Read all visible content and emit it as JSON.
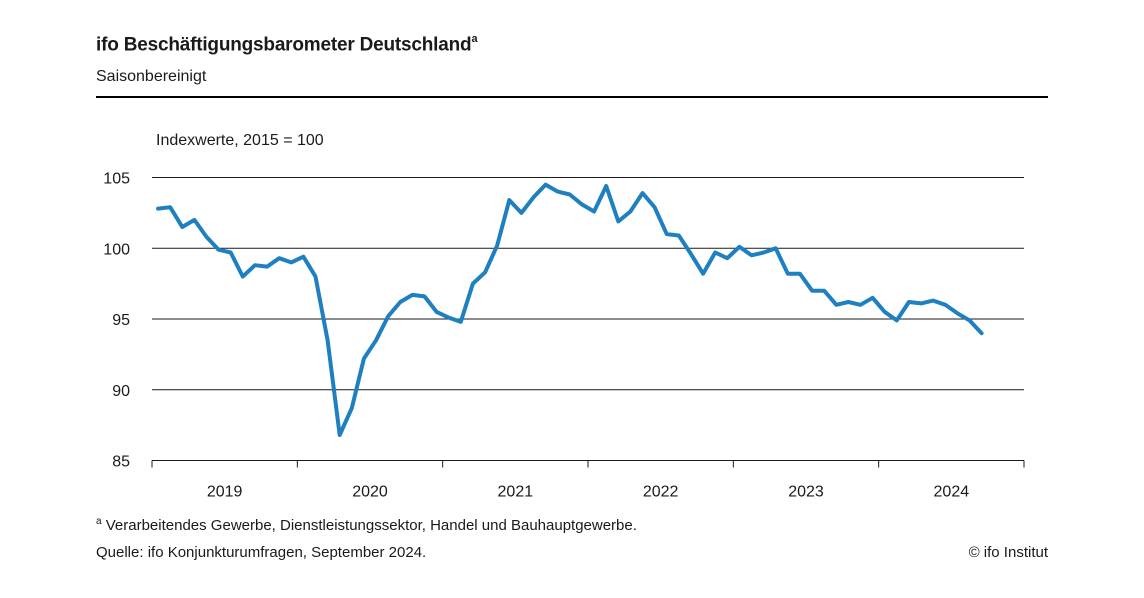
{
  "header": {
    "title": "ifo Beschäftigungsbarometer Deutschland",
    "title_marker": "a",
    "subtitle": "Saisonbereinigt"
  },
  "footer": {
    "footnote_marker": "a",
    "footnote": "Verarbeitendes Gewerbe, Dienstleistungssektor, Handel und Bauhauptgewerbe.",
    "source": "Quelle: ifo Konjunkturumfragen, September 2024.",
    "credit": "© ifo Institut"
  },
  "chart_data": {
    "type": "line",
    "title": "ifo Beschäftigungsbarometer Deutschland",
    "ylabel": "Indexwerte, 2015 = 100",
    "ylim": [
      85,
      105
    ],
    "yticks": [
      85,
      90,
      95,
      100,
      105
    ],
    "xlim": [
      "2019-01",
      "2024-12"
    ],
    "xtick_labels": [
      "2019",
      "2020",
      "2021",
      "2022",
      "2023",
      "2024"
    ],
    "grid": "horizontal",
    "color": "#1e7fc1",
    "series": [
      {
        "x": [
          "2019-01",
          "2019-02",
          "2019-03",
          "2019-04",
          "2019-05",
          "2019-06",
          "2019-07",
          "2019-08",
          "2019-09",
          "2019-10",
          "2019-11",
          "2019-12",
          "2020-01",
          "2020-02",
          "2020-03",
          "2020-04",
          "2020-05",
          "2020-06",
          "2020-07",
          "2020-08",
          "2020-09",
          "2020-10",
          "2020-11",
          "2020-12",
          "2021-01",
          "2021-02",
          "2021-03",
          "2021-04",
          "2021-05",
          "2021-06",
          "2021-07",
          "2021-08",
          "2021-09",
          "2021-10",
          "2021-11",
          "2021-12",
          "2022-01",
          "2022-02",
          "2022-03",
          "2022-04",
          "2022-05",
          "2022-06",
          "2022-07",
          "2022-08",
          "2022-09",
          "2022-10",
          "2022-11",
          "2022-12",
          "2023-01",
          "2023-02",
          "2023-03",
          "2023-04",
          "2023-05",
          "2023-06",
          "2023-07",
          "2023-08",
          "2023-09",
          "2023-10",
          "2023-11",
          "2023-12",
          "2024-01",
          "2024-02",
          "2024-03",
          "2024-04",
          "2024-05",
          "2024-06",
          "2024-07",
          "2024-08",
          "2024-09"
        ],
        "values": [
          102.8,
          102.9,
          101.5,
          102.0,
          100.8,
          99.9,
          99.7,
          98.0,
          98.8,
          98.7,
          99.3,
          99.0,
          99.4,
          98.0,
          93.5,
          86.8,
          88.7,
          92.2,
          93.5,
          95.2,
          96.2,
          96.7,
          96.6,
          95.5,
          95.1,
          94.8,
          97.5,
          98.3,
          100.2,
          103.4,
          102.5,
          103.6,
          104.5,
          104.0,
          103.8,
          103.1,
          102.6,
          104.4,
          101.9,
          102.6,
          103.9,
          102.9,
          101.0,
          100.9,
          99.6,
          98.2,
          99.7,
          99.3,
          100.1,
          99.5,
          99.7,
          100.0,
          98.2,
          98.2,
          97.0,
          97.0,
          96.0,
          96.2,
          96.0,
          96.5,
          95.5,
          94.9,
          96.2,
          96.1,
          96.3,
          96.0,
          95.4,
          94.9,
          94.0
        ]
      }
    ]
  }
}
